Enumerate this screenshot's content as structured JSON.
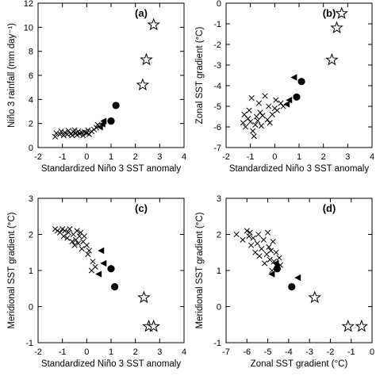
{
  "chart_data": [
    {
      "type": "scatter",
      "panel_label": "(a)",
      "xlabel": "Standardized Niño 3 SST anomaly",
      "ylabel": "Niño 3 rainfall (mm day⁻¹)",
      "xlim": [
        -2,
        4
      ],
      "ylim": [
        0,
        12
      ],
      "xticks": [
        -2,
        -1,
        0,
        1,
        2,
        3,
        4
      ],
      "yticks": [
        0,
        2,
        4,
        6,
        8,
        10,
        12
      ],
      "series": [
        {
          "marker": "cross",
          "points": [
            [
              -1.3,
              0.9
            ],
            [
              -1.25,
              1.2
            ],
            [
              -1.1,
              1.1
            ],
            [
              -1.05,
              1.35
            ],
            [
              -0.95,
              1.0
            ],
            [
              -0.9,
              1.25
            ],
            [
              -0.8,
              1.1
            ],
            [
              -0.75,
              1.4
            ],
            [
              -0.65,
              1.15
            ],
            [
              -0.6,
              1.0
            ],
            [
              -0.55,
              1.3
            ],
            [
              -0.5,
              1.45
            ],
            [
              -0.45,
              1.2
            ],
            [
              -0.4,
              1.05
            ],
            [
              -0.35,
              1.35
            ],
            [
              -0.3,
              1.15
            ],
            [
              -0.2,
              1.25
            ],
            [
              -0.15,
              1.0
            ],
            [
              -0.1,
              1.3
            ],
            [
              0.0,
              1.2
            ],
            [
              0.05,
              1.45
            ],
            [
              0.1,
              1.1
            ],
            [
              0.2,
              1.35
            ],
            [
              0.3,
              1.5
            ],
            [
              0.4,
              1.65
            ],
            [
              0.45,
              1.9
            ]
          ]
        },
        {
          "marker": "triangle",
          "points": [
            [
              0.55,
              1.7
            ],
            [
              0.65,
              1.95
            ],
            [
              0.7,
              2.2
            ]
          ]
        },
        {
          "marker": "circle",
          "points": [
            [
              1.0,
              2.2
            ],
            [
              1.2,
              3.5
            ]
          ]
        },
        {
          "marker": "star",
          "points": [
            [
              2.3,
              5.2
            ],
            [
              2.45,
              7.3
            ],
            [
              2.75,
              10.2
            ]
          ]
        }
      ]
    },
    {
      "type": "scatter",
      "panel_label": "(b)",
      "xlabel": "Standardized Niño 3 SST anomaly",
      "ylabel": "Zonal SST gradient (°C)",
      "xlim": [
        -2,
        4
      ],
      "ylim": [
        -7,
        0
      ],
      "xticks": [
        -2,
        -1,
        0,
        1,
        2,
        3,
        4
      ],
      "yticks": [
        -7,
        -6,
        -5,
        -4,
        -3,
        -2,
        -1,
        0
      ],
      "series": [
        {
          "marker": "cross",
          "points": [
            [
              -1.3,
              -5.8
            ],
            [
              -1.25,
              -5.4
            ],
            [
              -1.2,
              -6.0
            ],
            [
              -1.1,
              -5.6
            ],
            [
              -1.05,
              -5.2
            ],
            [
              -1.0,
              -5.75
            ],
            [
              -0.95,
              -4.6
            ],
            [
              -0.9,
              -6.2
            ],
            [
              -0.85,
              -6.45
            ],
            [
              -0.8,
              -5.9
            ],
            [
              -0.75,
              -5.5
            ],
            [
              -0.7,
              -5.7
            ],
            [
              -0.65,
              -4.85
            ],
            [
              -0.6,
              -5.3
            ],
            [
              -0.55,
              -5.95
            ],
            [
              -0.5,
              -5.45
            ],
            [
              -0.4,
              -4.5
            ],
            [
              -0.3,
              -5.65
            ],
            [
              -0.25,
              -5.0
            ],
            [
              -0.2,
              -5.8
            ],
            [
              -0.1,
              -5.4
            ],
            [
              0.0,
              -5.1
            ],
            [
              0.05,
              -4.7
            ],
            [
              0.1,
              -5.2
            ],
            [
              0.25,
              -4.85
            ],
            [
              0.35,
              -5.0
            ]
          ]
        },
        {
          "marker": "triangle",
          "points": [
            [
              0.5,
              -4.9
            ],
            [
              0.6,
              -4.7
            ],
            [
              0.8,
              -3.6
            ]
          ]
        },
        {
          "marker": "circle",
          "points": [
            [
              0.9,
              -4.55
            ],
            [
              1.1,
              -3.8
            ]
          ]
        },
        {
          "marker": "star",
          "points": [
            [
              2.35,
              -2.75
            ],
            [
              2.55,
              -1.2
            ],
            [
              2.75,
              -0.5
            ]
          ]
        }
      ]
    },
    {
      "type": "scatter",
      "panel_label": "(c)",
      "xlabel": "Standardized Niño 3 SST anomaly",
      "ylabel": "Meridional SST gradient (°C)",
      "xlim": [
        -2,
        4
      ],
      "ylim": [
        -1,
        3
      ],
      "xticks": [
        -2,
        -1,
        0,
        1,
        2,
        3,
        4
      ],
      "yticks": [
        -1,
        0,
        1,
        2,
        3
      ],
      "series": [
        {
          "marker": "cross",
          "points": [
            [
              -1.3,
              2.15
            ],
            [
              -1.2,
              2.1
            ],
            [
              -1.1,
              2.05
            ],
            [
              -1.0,
              2.15
            ],
            [
              -0.95,
              1.95
            ],
            [
              -0.9,
              2.1
            ],
            [
              -0.8,
              1.9
            ],
            [
              -0.75,
              2.05
            ],
            [
              -0.7,
              2.15
            ],
            [
              -0.6,
              1.8
            ],
            [
              -0.55,
              2.0
            ],
            [
              -0.5,
              1.7
            ],
            [
              -0.45,
              1.85
            ],
            [
              -0.4,
              2.1
            ],
            [
              -0.35,
              1.75
            ],
            [
              -0.3,
              1.95
            ],
            [
              -0.25,
              2.05
            ],
            [
              -0.2,
              1.6
            ],
            [
              -0.15,
              1.8
            ],
            [
              -0.1,
              1.95
            ],
            [
              0.0,
              1.7
            ],
            [
              0.05,
              1.45
            ],
            [
              0.1,
              1.55
            ],
            [
              0.2,
              1.0
            ],
            [
              0.25,
              1.25
            ],
            [
              0.35,
              1.1
            ]
          ]
        },
        {
          "marker": "triangle",
          "points": [
            [
              0.5,
              0.9
            ],
            [
              0.6,
              1.55
            ],
            [
              0.7,
              1.2
            ]
          ]
        },
        {
          "marker": "circle",
          "points": [
            [
              1.0,
              1.05
            ],
            [
              1.15,
              0.55
            ]
          ]
        },
        {
          "marker": "star",
          "points": [
            [
              2.35,
              0.25
            ],
            [
              2.55,
              -0.55
            ],
            [
              2.75,
              -0.55
            ]
          ]
        }
      ]
    },
    {
      "type": "scatter",
      "panel_label": "(d)",
      "xlabel": "Zonal SST gradient (°C)",
      "ylabel": "Meridional SST gradient (°C)",
      "xlim": [
        -7,
        0
      ],
      "ylim": [
        -1,
        3
      ],
      "xticks": [
        -7,
        -6,
        -5,
        -4,
        -3,
        -2,
        -1,
        0
      ],
      "yticks": [
        -1,
        0,
        1,
        2,
        3
      ],
      "series": [
        {
          "marker": "cross",
          "points": [
            [
              -6.5,
              2.0
            ],
            [
              -6.2,
              1.85
            ],
            [
              -6.0,
              2.1
            ],
            [
              -5.9,
              1.95
            ],
            [
              -5.85,
              2.05
            ],
            [
              -5.8,
              1.7
            ],
            [
              -5.7,
              1.9
            ],
            [
              -5.6,
              1.5
            ],
            [
              -5.5,
              1.75
            ],
            [
              -5.45,
              2.0
            ],
            [
              -5.4,
              1.4
            ],
            [
              -5.3,
              1.6
            ],
            [
              -5.2,
              1.85
            ],
            [
              -5.15,
              1.2
            ],
            [
              -5.05,
              1.45
            ],
            [
              -5.0,
              2.05
            ],
            [
              -4.95,
              1.65
            ],
            [
              -4.9,
              1.3
            ],
            [
              -4.85,
              1.55
            ],
            [
              -4.8,
              1.0
            ],
            [
              -4.75,
              1.8
            ],
            [
              -4.7,
              1.25
            ],
            [
              -4.6,
              1.5
            ],
            [
              -4.55,
              1.1
            ],
            [
              -4.45,
              1.35
            ],
            [
              -4.4,
              1.15
            ]
          ]
        },
        {
          "marker": "triangle",
          "points": [
            [
              -4.8,
              0.9
            ],
            [
              -4.6,
              1.2
            ],
            [
              -3.55,
              0.8
            ]
          ]
        },
        {
          "marker": "circle",
          "points": [
            [
              -4.55,
              1.05
            ],
            [
              -3.85,
              0.55
            ]
          ]
        },
        {
          "marker": "star",
          "points": [
            [
              -2.75,
              0.25
            ],
            [
              -1.15,
              -0.55
            ],
            [
              -0.5,
              -0.55
            ]
          ]
        }
      ]
    }
  ]
}
